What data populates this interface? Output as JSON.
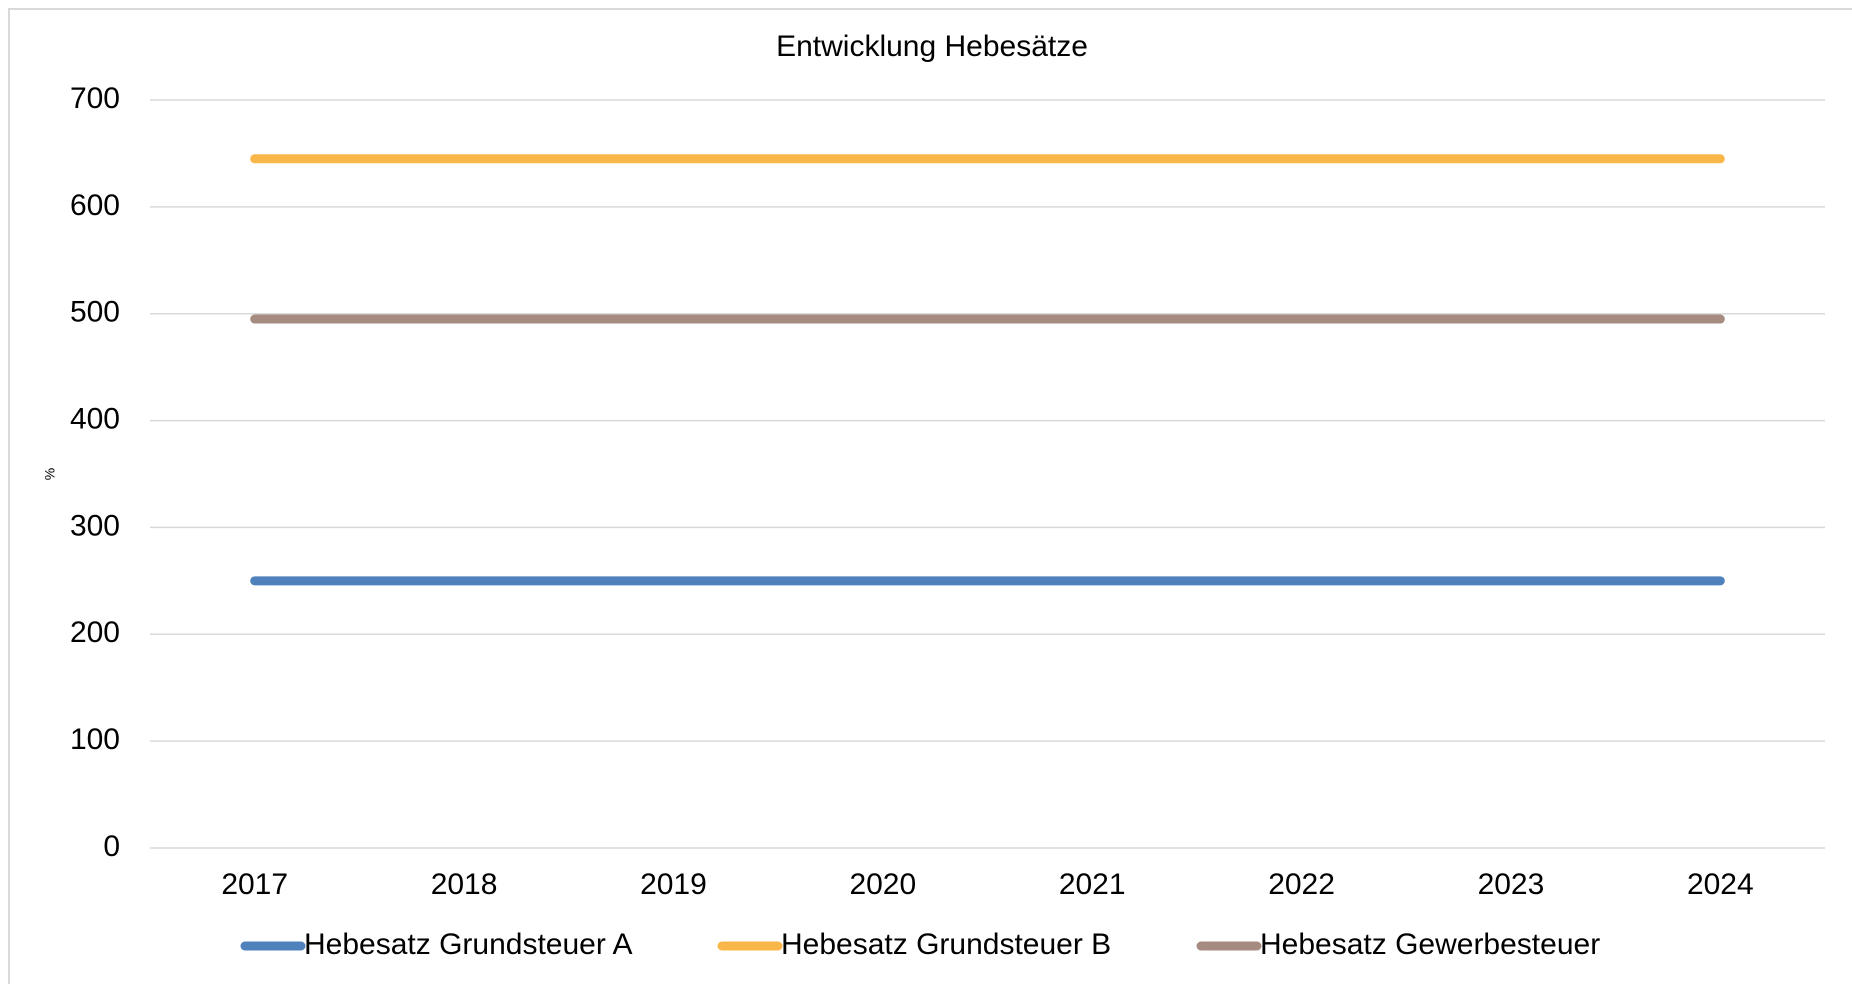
{
  "chart_data": {
    "type": "line",
    "title": "Entwicklung Hebesätze",
    "y_label": "%",
    "categories": [
      "2017",
      "2018",
      "2019",
      "2020",
      "2021",
      "2022",
      "2023",
      "2024"
    ],
    "series": [
      {
        "name": "Hebesatz Grundsteuer A",
        "color": "#4f81bd",
        "values": [
          250,
          250,
          250,
          250,
          250,
          250,
          250,
          250
        ]
      },
      {
        "name": "Hebesatz Grundsteuer B",
        "color": "#f9b74a",
        "values": [
          645,
          645,
          645,
          645,
          645,
          645,
          645,
          645
        ]
      },
      {
        "name": "Hebesatz Gewerbesteuer",
        "color": "#a58b80",
        "values": [
          495,
          495,
          495,
          495,
          495,
          495,
          495,
          495
        ]
      }
    ],
    "ylim": [
      0,
      700
    ],
    "yticks": [
      0,
      100,
      200,
      300,
      400,
      500,
      600,
      700
    ],
    "grid": true,
    "legend": "bottom"
  }
}
